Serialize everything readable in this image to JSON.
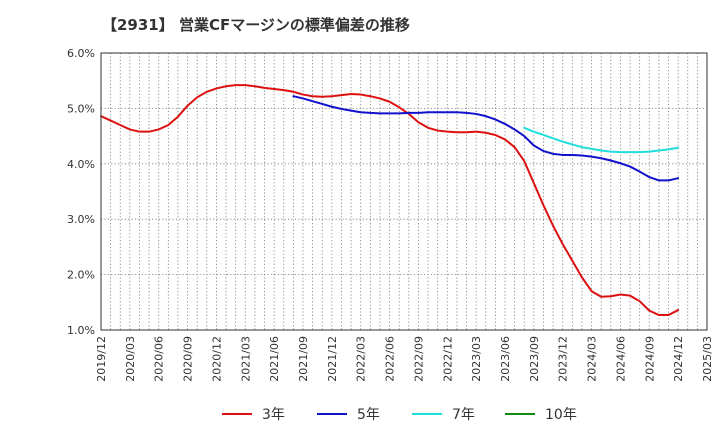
{
  "chart_data": {
    "type": "line",
    "title": "【2931】 営業CFマージンの標準偏差の推移",
    "xlabel": "",
    "ylabel": "",
    "x_ticks": [
      "2019/12",
      "2020/03",
      "2020/06",
      "2020/09",
      "2020/12",
      "2021/03",
      "2021/06",
      "2021/09",
      "2021/12",
      "2022/03",
      "2022/06",
      "2022/09",
      "2022/12",
      "2023/03",
      "2023/06",
      "2023/09",
      "2023/12",
      "2024/03",
      "2024/06",
      "2024/09",
      "2024/12",
      "2025/03"
    ],
    "y_ticks": [
      "1.0%",
      "2.0%",
      "3.0%",
      "4.0%",
      "5.0%",
      "6.0%"
    ],
    "ylim": [
      1.0,
      6.0
    ],
    "grid": true,
    "legend_position": "bottom",
    "series": [
      {
        "name": "3年",
        "color": "#dd1111",
        "points": [
          [
            "2019/12",
            4.86
          ],
          [
            "2020/01",
            4.78
          ],
          [
            "2020/02",
            4.7
          ],
          [
            "2020/03",
            4.62
          ],
          [
            "2020/04",
            4.58
          ],
          [
            "2020/05",
            4.58
          ],
          [
            "2020/06",
            4.62
          ],
          [
            "2020/07",
            4.7
          ],
          [
            "2020/08",
            4.85
          ],
          [
            "2020/09",
            5.05
          ],
          [
            "2020/10",
            5.2
          ],
          [
            "2020/11",
            5.3
          ],
          [
            "2020/12",
            5.36
          ],
          [
            "2021/01",
            5.4
          ],
          [
            "2021/02",
            5.42
          ],
          [
            "2021/03",
            5.42
          ],
          [
            "2021/04",
            5.4
          ],
          [
            "2021/05",
            5.37
          ],
          [
            "2021/06",
            5.35
          ],
          [
            "2021/07",
            5.33
          ],
          [
            "2021/08",
            5.3
          ],
          [
            "2021/09",
            5.25
          ],
          [
            "2021/10",
            5.22
          ],
          [
            "2021/11",
            5.21
          ],
          [
            "2021/12",
            5.22
          ],
          [
            "2022/01",
            5.24
          ],
          [
            "2022/02",
            5.26
          ],
          [
            "2022/03",
            5.25
          ],
          [
            "2022/04",
            5.22
          ],
          [
            "2022/05",
            5.18
          ],
          [
            "2022/06",
            5.12
          ],
          [
            "2022/07",
            5.02
          ],
          [
            "2022/08",
            4.9
          ],
          [
            "2022/09",
            4.75
          ],
          [
            "2022/10",
            4.65
          ],
          [
            "2022/11",
            4.6
          ],
          [
            "2022/12",
            4.58
          ],
          [
            "2023/01",
            4.57
          ],
          [
            "2023/02",
            4.57
          ],
          [
            "2023/03",
            4.58
          ],
          [
            "2023/04",
            4.56
          ],
          [
            "2023/05",
            4.52
          ],
          [
            "2023/06",
            4.44
          ],
          [
            "2023/07",
            4.3
          ],
          [
            "2023/08",
            4.05
          ],
          [
            "2023/09",
            3.65
          ],
          [
            "2023/10",
            3.25
          ],
          [
            "2023/11",
            2.88
          ],
          [
            "2023/12",
            2.55
          ],
          [
            "2024/01",
            2.25
          ],
          [
            "2024/02",
            1.95
          ],
          [
            "2024/03",
            1.7
          ],
          [
            "2024/04",
            1.6
          ],
          [
            "2024/05",
            1.61
          ],
          [
            "2024/06",
            1.64
          ],
          [
            "2024/07",
            1.62
          ],
          [
            "2024/08",
            1.52
          ],
          [
            "2024/09",
            1.35
          ],
          [
            "2024/10",
            1.27
          ],
          [
            "2024/11",
            1.27
          ],
          [
            "2024/12",
            1.36
          ]
        ]
      },
      {
        "name": "5年",
        "color": "#1111cc",
        "points": [
          [
            "2021/08",
            5.22
          ],
          [
            "2021/09",
            5.18
          ],
          [
            "2021/10",
            5.13
          ],
          [
            "2021/11",
            5.08
          ],
          [
            "2021/12",
            5.03
          ],
          [
            "2022/01",
            4.99
          ],
          [
            "2022/02",
            4.96
          ],
          [
            "2022/03",
            4.93
          ],
          [
            "2022/04",
            4.92
          ],
          [
            "2022/05",
            4.91
          ],
          [
            "2022/06",
            4.91
          ],
          [
            "2022/07",
            4.91
          ],
          [
            "2022/08",
            4.92
          ],
          [
            "2022/09",
            4.92
          ],
          [
            "2022/10",
            4.93
          ],
          [
            "2022/11",
            4.93
          ],
          [
            "2022/12",
            4.93
          ],
          [
            "2023/01",
            4.93
          ],
          [
            "2023/02",
            4.92
          ],
          [
            "2023/03",
            4.9
          ],
          [
            "2023/04",
            4.86
          ],
          [
            "2023/05",
            4.8
          ],
          [
            "2023/06",
            4.72
          ],
          [
            "2023/07",
            4.62
          ],
          [
            "2023/08",
            4.5
          ],
          [
            "2023/09",
            4.33
          ],
          [
            "2023/10",
            4.23
          ],
          [
            "2023/11",
            4.18
          ],
          [
            "2023/12",
            4.16
          ],
          [
            "2024/01",
            4.16
          ],
          [
            "2024/02",
            4.15
          ],
          [
            "2024/03",
            4.13
          ],
          [
            "2024/04",
            4.1
          ],
          [
            "2024/05",
            4.06
          ],
          [
            "2024/06",
            4.01
          ],
          [
            "2024/07",
            3.95
          ],
          [
            "2024/08",
            3.86
          ],
          [
            "2024/09",
            3.76
          ],
          [
            "2024/10",
            3.7
          ],
          [
            "2024/11",
            3.7
          ],
          [
            "2024/12",
            3.74
          ]
        ]
      },
      {
        "name": "7年",
        "color": "#22dddd",
        "points": [
          [
            "2023/08",
            4.65
          ],
          [
            "2023/09",
            4.58
          ],
          [
            "2023/10",
            4.52
          ],
          [
            "2023/11",
            4.46
          ],
          [
            "2023/12",
            4.4
          ],
          [
            "2024/01",
            4.35
          ],
          [
            "2024/02",
            4.3
          ],
          [
            "2024/03",
            4.27
          ],
          [
            "2024/04",
            4.24
          ],
          [
            "2024/05",
            4.22
          ],
          [
            "2024/06",
            4.21
          ],
          [
            "2024/07",
            4.21
          ],
          [
            "2024/08",
            4.21
          ],
          [
            "2024/09",
            4.22
          ],
          [
            "2024/10",
            4.24
          ],
          [
            "2024/11",
            4.26
          ],
          [
            "2024/12",
            4.29
          ]
        ]
      },
      {
        "name": "10年",
        "color": "#118811",
        "points": []
      }
    ]
  }
}
